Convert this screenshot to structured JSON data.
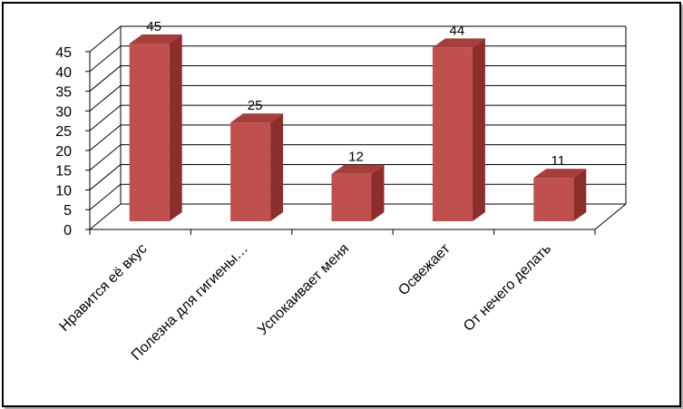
{
  "chart_data": {
    "type": "bar",
    "style": "3d-column",
    "categories": [
      "Нравится  её вкус",
      "Полезна для гигиены…",
      "Успокаивает меня",
      "Освежает",
      "От нечего делать"
    ],
    "values": [
      45,
      25,
      12,
      44,
      11
    ],
    "data_labels": [
      "45",
      "25",
      "12",
      "44",
      "11"
    ],
    "ylim": [
      0,
      45
    ],
    "yticks": [
      "0",
      "5",
      "10",
      "15",
      "20",
      "25",
      "30",
      "35",
      "40",
      "45"
    ],
    "grid": true,
    "legend": "none",
    "colors": {
      "bar_front": "#c0504d",
      "bar_side": "#8c2e2b",
      "bar_top": "#a53f3c",
      "grid": "#000000"
    }
  }
}
